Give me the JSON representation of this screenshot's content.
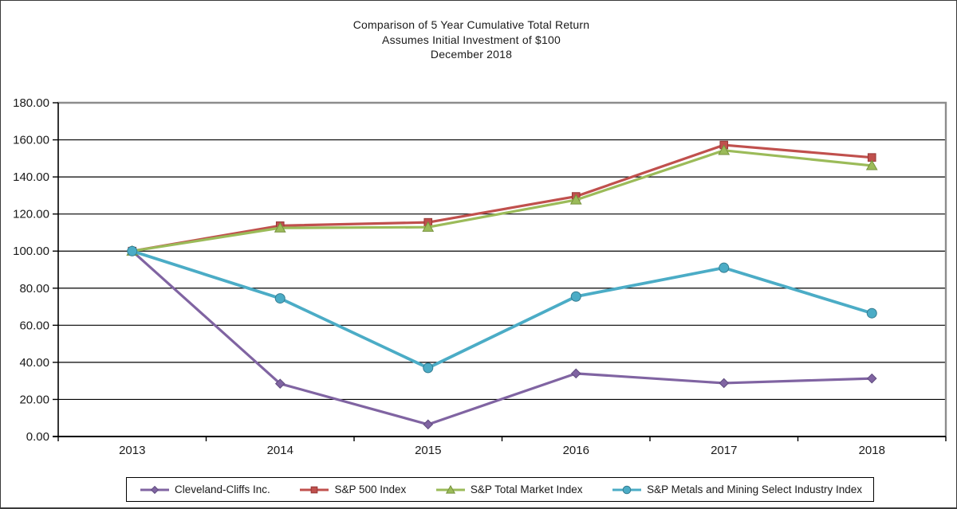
{
  "chart_data": {
    "type": "line",
    "title_lines": [
      "Comparison of 5 Year Cumulative Total Return",
      "Assumes Initial Investment of $100",
      "December 2018"
    ],
    "categories": [
      "2013",
      "2014",
      "2015",
      "2016",
      "2017",
      "2018"
    ],
    "y_axis": {
      "min": 0,
      "max": 180,
      "step": 20,
      "tick_labels": [
        "0.00",
        "20.00",
        "40.00",
        "60.00",
        "80.00",
        "100.00",
        "120.00",
        "140.00",
        "160.00",
        "180.00"
      ]
    },
    "grid": true,
    "legend_position": "bottom",
    "series": [
      {
        "name": "Cleveland-Cliffs Inc.",
        "color": "#8064A2",
        "marker_stroke": "#5F4B7E",
        "marker": "diamond",
        "values": [
          100.0,
          28.5,
          6.5,
          34.0,
          28.8,
          31.3
        ]
      },
      {
        "name": "S&P 500 Index",
        "color": "#C0504D",
        "marker_stroke": "#953735",
        "marker": "square",
        "values": [
          100.0,
          113.7,
          115.5,
          129.5,
          157.2,
          150.5
        ]
      },
      {
        "name": "S&P Total Market Index",
        "color": "#9BBB59",
        "marker_stroke": "#76923C",
        "marker": "triangle",
        "values": [
          100.0,
          112.5,
          112.9,
          127.6,
          154.3,
          146.1
        ]
      },
      {
        "name": "S&P Metals and Mining Select Industry Index",
        "color": "#4BACC6",
        "marker_stroke": "#357D91",
        "marker": "circle",
        "values": [
          100.0,
          74.5,
          37.0,
          75.5,
          91.0,
          66.5
        ]
      }
    ],
    "colors": {
      "gridline": "#000000",
      "axis": "#000000",
      "plot_border": "#8C8C8C",
      "text": "#1a1a1a",
      "background": "#FFFFFF"
    }
  }
}
